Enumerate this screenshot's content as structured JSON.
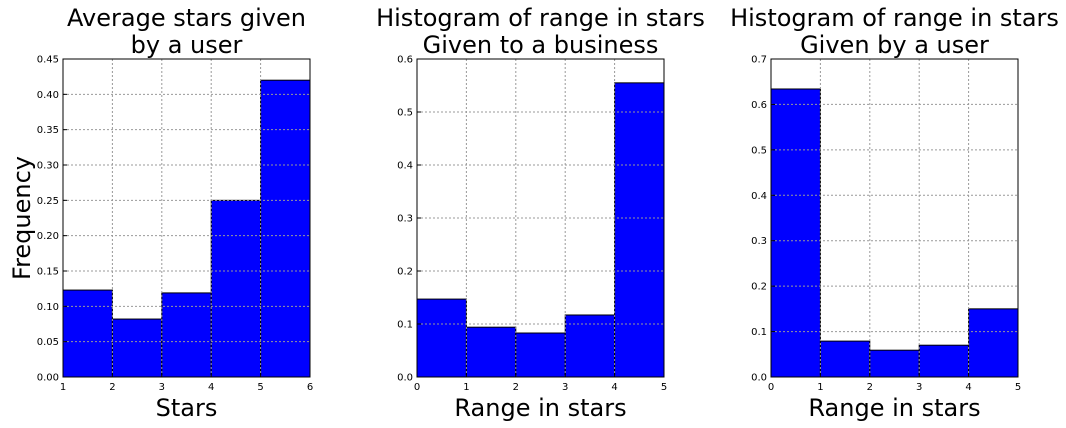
{
  "chart_data": [
    {
      "type": "histogram",
      "title": [
        "Average stars given",
        "by a user"
      ],
      "xlabel": "Stars",
      "ylabel": "Frequency",
      "bins": [
        1,
        2,
        3,
        4,
        5,
        6
      ],
      "values": [
        0.123,
        0.082,
        0.119,
        0.25,
        0.42
      ],
      "color": "#0000ff",
      "xlim": [
        1,
        6
      ],
      "xticks": [
        1,
        2,
        3,
        4,
        5,
        6
      ],
      "ylim": [
        0,
        0.45
      ],
      "yticks": [
        {
          "value": 0,
          "label": "0.00"
        },
        0.05,
        {
          "value": 0.1,
          "label": "0.10"
        },
        0.15,
        {
          "value": 0.2,
          "label": "0.20"
        },
        0.25,
        {
          "value": 0.3,
          "label": "0.30"
        },
        0.35,
        {
          "value": 0.4,
          "label": "0.40"
        },
        0.45
      ],
      "grid": true
    },
    {
      "type": "histogram",
      "title": [
        "Histogram of range in stars",
        "Given to a business"
      ],
      "xlabel": "Range in stars",
      "bins": [
        0,
        1,
        2,
        3,
        4,
        5
      ],
      "values": [
        0.147,
        0.094,
        0.083,
        0.117,
        0.555
      ],
      "color": "#0000ff",
      "xlim": [
        0,
        5
      ],
      "xticks": [
        0,
        1,
        2,
        3,
        4,
        5
      ],
      "ylim": [
        0,
        0.6
      ],
      "yticks": [
        {
          "value": 0,
          "label": "0.0"
        },
        0.1,
        0.2,
        0.3,
        0.4,
        0.5,
        0.6
      ],
      "grid": true
    },
    {
      "type": "histogram",
      "title": [
        "Histogram of range in stars",
        "Given by a user"
      ],
      "xlabel": "Range in stars",
      "bins": [
        0,
        1,
        2,
        3,
        4,
        5
      ],
      "values": [
        0.634,
        0.079,
        0.059,
        0.07,
        0.15
      ],
      "color": "#0000ff",
      "xlim": [
        0,
        5
      ],
      "xticks": [
        0,
        1,
        2,
        3,
        4,
        5
      ],
      "ylim": [
        0,
        0.7
      ],
      "yticks": [
        {
          "value": 0,
          "label": "0.0"
        },
        0.1,
        0.2,
        0.3,
        0.4,
        0.5,
        0.6,
        0.7
      ],
      "grid": true
    }
  ]
}
